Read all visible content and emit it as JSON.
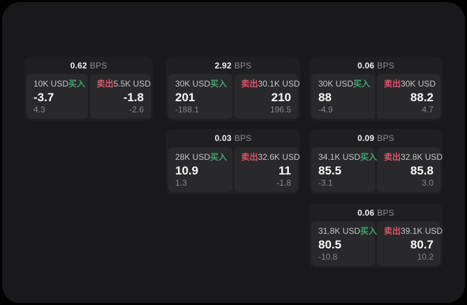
{
  "labels": {
    "bps_unit": "BPS",
    "buy": "买入",
    "sell": "卖出"
  },
  "colors": {
    "page_background": "#19191b",
    "card_background": "#1f1f22",
    "tile_background": "#29292c",
    "buy_green": "#3fa469",
    "sell_red": "#da5769",
    "price_text": "#fafafa",
    "muted_text": "#87878c"
  },
  "cards": [
    {
      "bps": "0.62",
      "buy": {
        "amount": "10K USD",
        "side": "买入",
        "price": "-3.7",
        "delta": "4.3"
      },
      "sell": {
        "side": "卖出",
        "amount": "5.5K USD",
        "price": "-1.8",
        "delta": "-2.6"
      }
    },
    {
      "bps": "2.92",
      "buy": {
        "amount": "30K USD",
        "side": "买入",
        "price": "201",
        "delta": "-188.1"
      },
      "sell": {
        "side": "卖出",
        "amount": "30.1K USD",
        "price": "210",
        "delta": "196.5"
      }
    },
    {
      "bps": "0.06",
      "buy": {
        "amount": "30K USD",
        "side": "买入",
        "price": "88",
        "delta": "-4.9"
      },
      "sell": {
        "side": "卖出",
        "amount": "30K USD",
        "price": "88.2",
        "delta": "4.7"
      }
    },
    {
      "bps": "0.03",
      "buy": {
        "amount": "28K USD",
        "side": "买入",
        "price": "10.9",
        "delta": "1.3"
      },
      "sell": {
        "side": "卖出",
        "amount": "32.6K USD",
        "price": "11",
        "delta": "-1.8"
      }
    },
    {
      "bps": "0.09",
      "buy": {
        "amount": "34.1K USD",
        "side": "买入",
        "price": "85.5",
        "delta": "-3.1"
      },
      "sell": {
        "side": "卖出",
        "amount": "32.8K USD",
        "price": "85.8",
        "delta": "3.0"
      }
    },
    {
      "bps": "0.06",
      "buy": {
        "amount": "31.8K USD",
        "side": "买入",
        "price": "80.5",
        "delta": "-10.8"
      },
      "sell": {
        "side": "卖出",
        "amount": "39.1K USD",
        "price": "80.7",
        "delta": "10.2"
      }
    }
  ]
}
